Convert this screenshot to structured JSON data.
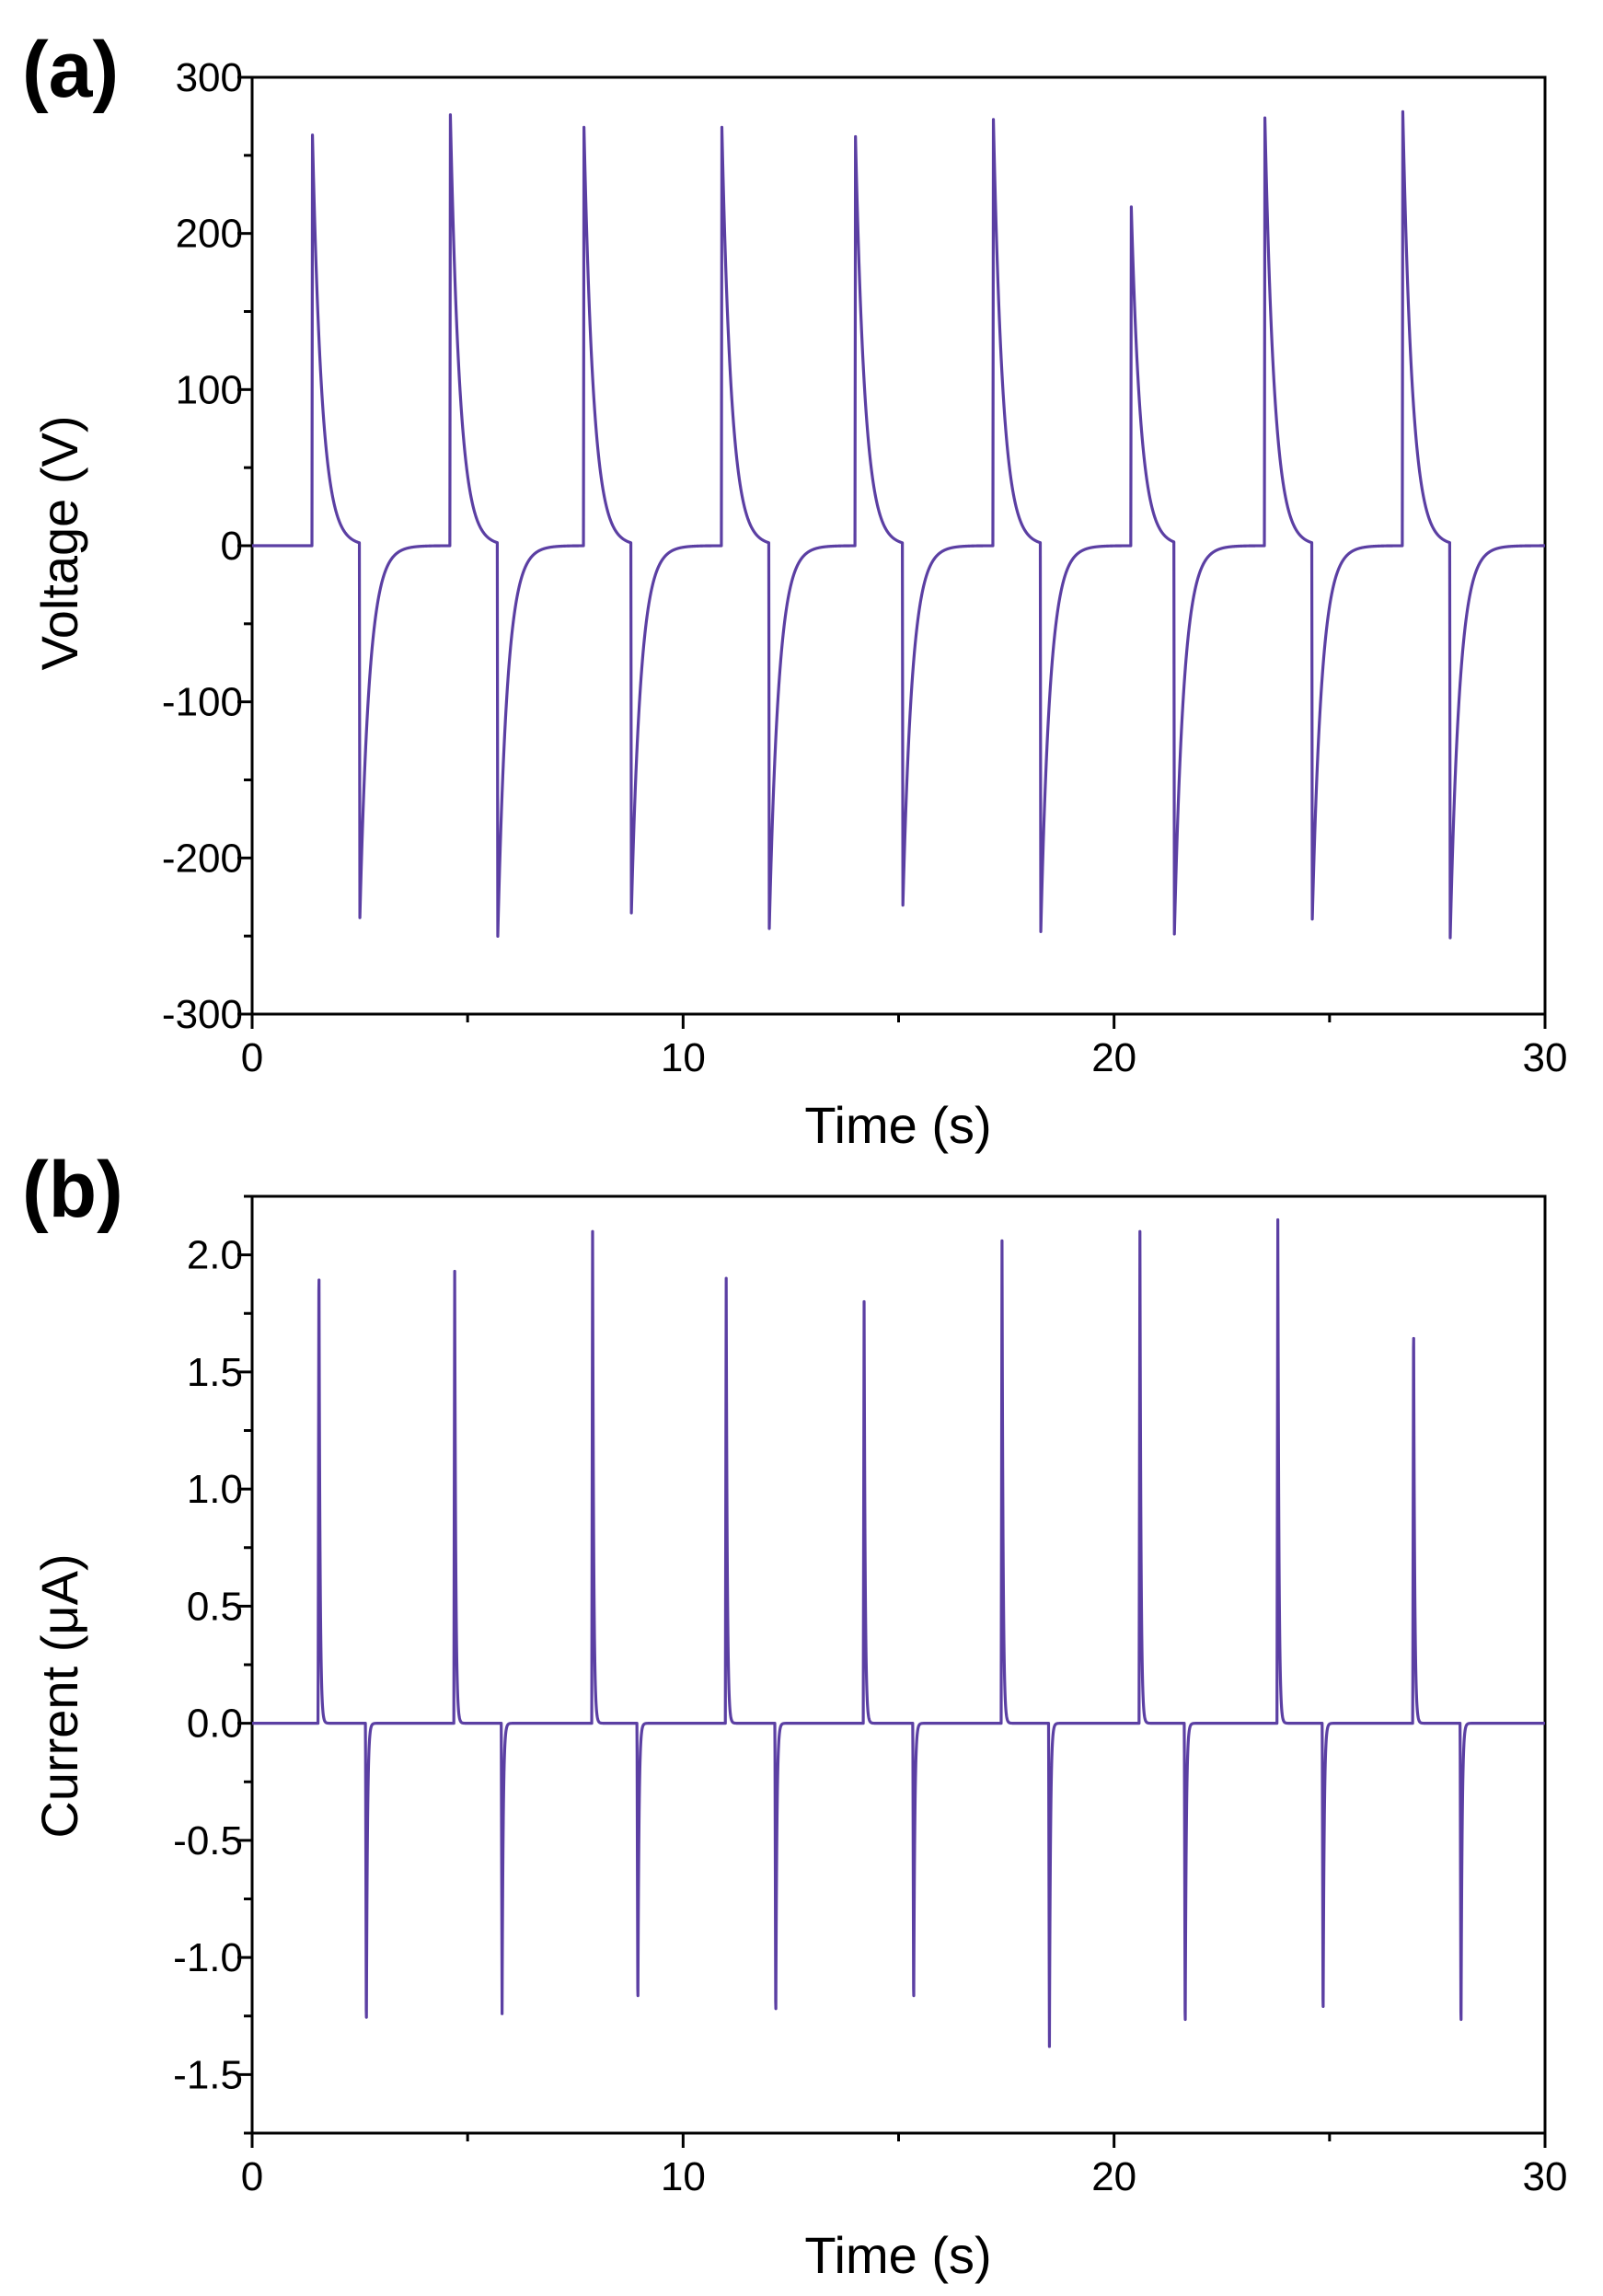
{
  "figure": {
    "panels": [
      {
        "label": "(a)"
      },
      {
        "label": "(b)"
      }
    ]
  },
  "colors": {
    "series": "#5b3fa3",
    "axis": "#000000",
    "background": "#ffffff"
  },
  "chart_data": [
    {
      "type": "line",
      "panel": "(a)",
      "title": "",
      "xlabel": "Time (s)",
      "ylabel": "Voltage (V)",
      "xlim": [
        0,
        30
      ],
      "ylim": [
        -300,
        300
      ],
      "xticks": [
        0,
        10,
        20,
        30
      ],
      "xtick_labels": [
        "0",
        "10",
        "20",
        "30"
      ],
      "yticks": [
        -300,
        -200,
        -100,
        0,
        100,
        200,
        300
      ],
      "ytick_labels": [
        "-300",
        "-200",
        "-100",
        "0",
        "100",
        "200",
        "300"
      ],
      "grid": false,
      "series": [
        {
          "name": "Voltage",
          "baseline": 0,
          "positive_pulses": [
            {
              "t": 1.4,
              "peak": 263
            },
            {
              "t": 4.6,
              "peak": 276
            },
            {
              "t": 7.7,
              "peak": 268
            },
            {
              "t": 10.9,
              "peak": 268
            },
            {
              "t": 14.0,
              "peak": 262
            },
            {
              "t": 17.2,
              "peak": 273
            },
            {
              "t": 20.4,
              "peak": 217
            },
            {
              "t": 23.5,
              "peak": 274
            },
            {
              "t": 26.7,
              "peak": 278
            }
          ],
          "negative_pulses": [
            {
              "t": 2.5,
              "peak": -240
            },
            {
              "t": 5.7,
              "peak": -252
            },
            {
              "t": 8.8,
              "peak": -237
            },
            {
              "t": 12.0,
              "peak": -247
            },
            {
              "t": 15.1,
              "peak": -232
            },
            {
              "t": 18.3,
              "peak": -249
            },
            {
              "t": 21.4,
              "peak": -251
            },
            {
              "t": 24.6,
              "peak": -241
            },
            {
              "t": 27.8,
              "peak": -253
            }
          ]
        }
      ]
    },
    {
      "type": "line",
      "panel": "(b)",
      "title": "",
      "xlabel": "Time (s)",
      "ylabel": "Current (μA)",
      "xlim": [
        0,
        30
      ],
      "ylim": [
        -1.75,
        2.25
      ],
      "xticks": [
        0,
        10,
        20,
        30
      ],
      "xtick_labels": [
        "0",
        "10",
        "20",
        "30"
      ],
      "yticks": [
        -1.5,
        -1.0,
        -0.5,
        0.0,
        0.5,
        1.0,
        1.5,
        2.0
      ],
      "ytick_labels": [
        "-1.5",
        "-1.0",
        "-0.5",
        "0.0",
        "0.5",
        "1.0",
        "1.5",
        "2.0"
      ],
      "grid": false,
      "series": [
        {
          "name": "Current",
          "baseline": 0,
          "positive_pulses": [
            {
              "t": 1.55,
              "peak": 2.05
            },
            {
              "t": 4.7,
              "peak": 1.93
            },
            {
              "t": 7.9,
              "peak": 2.1
            },
            {
              "t": 11.0,
              "peak": 1.9
            },
            {
              "t": 14.2,
              "peak": 1.8
            },
            {
              "t": 17.4,
              "peak": 2.06
            },
            {
              "t": 20.6,
              "peak": 2.1
            },
            {
              "t": 23.8,
              "peak": 2.15
            },
            {
              "t": 26.95,
              "peak": 1.78
            }
          ],
          "negative_pulses": [
            {
              "t": 2.65,
              "peak": -1.36
            },
            {
              "t": 5.8,
              "peak": -1.24
            },
            {
              "t": 8.95,
              "peak": -1.26
            },
            {
              "t": 12.15,
              "peak": -1.32
            },
            {
              "t": 15.35,
              "peak": -1.26
            },
            {
              "t": 18.5,
              "peak": -1.38
            },
            {
              "t": 21.65,
              "peak": -1.37
            },
            {
              "t": 24.85,
              "peak": -1.31
            },
            {
              "t": 28.05,
              "peak": -1.37
            }
          ]
        }
      ]
    }
  ]
}
